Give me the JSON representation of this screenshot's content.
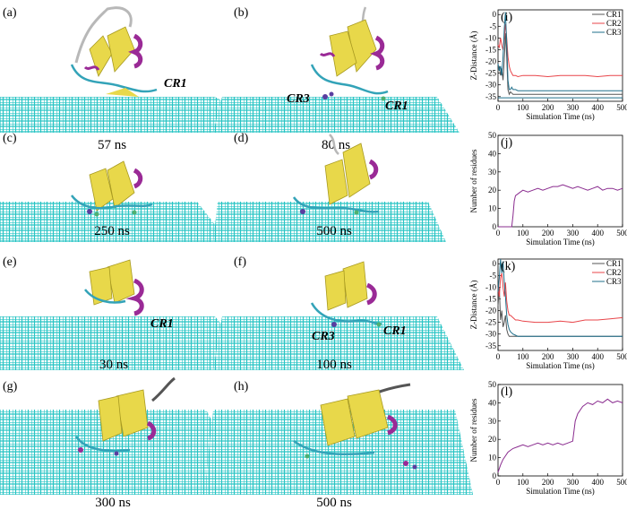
{
  "figure": {
    "snapshots": [
      {
        "label": "(a)",
        "time": "57 ns",
        "annotations": [
          "CR1"
        ]
      },
      {
        "label": "(b)",
        "time": "80 ns",
        "annotations": [
          "CR3",
          "CR1"
        ]
      },
      {
        "label": "(c)",
        "time": "250 ns",
        "annotations": []
      },
      {
        "label": "(d)",
        "time": "500 ns",
        "annotations": []
      },
      {
        "label": "(e)",
        "time": "30 ns",
        "annotations": [
          "CR1"
        ]
      },
      {
        "label": "(f)",
        "time": "100 ns",
        "annotations": [
          "CR3",
          "CR1"
        ]
      },
      {
        "label": "(g)",
        "time": "300 ns",
        "annotations": []
      },
      {
        "label": "(h)",
        "time": "500 ns",
        "annotations": []
      }
    ],
    "colors": {
      "surface": "#28c4c4",
      "surface_dot": "#e03030",
      "protein_sheet": "#e8d84a",
      "protein_helix": "#9a2a96",
      "protein_coil": "#33a3b8",
      "protein_loop": "#b8b8b8"
    }
  },
  "chart_data": [
    {
      "label": "(i)",
      "type": "line",
      "xlabel": "Simulation Time (ns)",
      "ylabel": "Z-Distance (Å)",
      "xlim": [
        0,
        500
      ],
      "ylim": [
        -37,
        2
      ],
      "xticks": [
        0,
        100,
        200,
        300,
        400,
        500
      ],
      "yticks": [
        0,
        -5,
        -10,
        -15,
        -20,
        -25,
        -30,
        -35
      ],
      "legend_position": "top-right",
      "series": [
        {
          "name": "CR1",
          "color": "#555555",
          "x": [
            0,
            5,
            10,
            15,
            20,
            25,
            30,
            35,
            40,
            45,
            50,
            55,
            60,
            70,
            80,
            100,
            150,
            200,
            250,
            300,
            350,
            400,
            450,
            500
          ],
          "y": [
            -24,
            -22,
            -26,
            -23,
            -28,
            -19,
            -8,
            -18,
            -32,
            -34,
            -33,
            -33.5,
            -34,
            -34,
            -34,
            -34,
            -34,
            -34,
            -34,
            -34,
            -34,
            -34,
            -34,
            -34
          ]
        },
        {
          "name": "CR2",
          "color": "#e8454a",
          "x": [
            0,
            5,
            10,
            15,
            20,
            25,
            30,
            35,
            40,
            45,
            50,
            55,
            60,
            70,
            80,
            100,
            150,
            200,
            250,
            300,
            350,
            400,
            450,
            500
          ],
          "y": [
            -13,
            -14,
            -10,
            -13,
            -15,
            -10,
            -4,
            -10,
            -18,
            -22,
            -24,
            -25,
            -26,
            -26,
            -26.5,
            -26,
            -26,
            -26.5,
            -26,
            -26,
            -26,
            -26.5,
            -26,
            -26
          ]
        },
        {
          "name": "CR3",
          "color": "#1f6f8b",
          "x": [
            0,
            5,
            10,
            15,
            20,
            25,
            30,
            35,
            40,
            45,
            50,
            55,
            60,
            70,
            80,
            100,
            150,
            200,
            250,
            300,
            350,
            400,
            450,
            500
          ],
          "y": [
            -21,
            -24,
            -22,
            -26,
            -18,
            -6,
            1,
            -12,
            -28,
            -32,
            -32,
            -31,
            -32,
            -32,
            -32.5,
            -32.5,
            -32.5,
            -32.5,
            -32.5,
            -32.5,
            -32.5,
            -32.5,
            -32.5,
            -32.5
          ]
        }
      ],
      "hlines": [
        {
          "y": -35.5,
          "color": "#1f6f8b"
        }
      ]
    },
    {
      "label": "(j)",
      "type": "line",
      "xlabel": "Simulation Time (ns)",
      "ylabel": "Number of residues",
      "xlim": [
        0,
        500
      ],
      "ylim": [
        0,
        50
      ],
      "xticks": [
        0,
        100,
        200,
        300,
        400,
        500
      ],
      "yticks": [
        0,
        10,
        20,
        30,
        40,
        50
      ],
      "series": [
        {
          "name": "",
          "color": "#8a2c8f",
          "x": [
            0,
            55,
            60,
            65,
            70,
            80,
            90,
            100,
            120,
            140,
            160,
            180,
            200,
            220,
            240,
            260,
            280,
            300,
            320,
            340,
            360,
            380,
            400,
            420,
            440,
            460,
            480,
            500
          ],
          "y": [
            0,
            0,
            6,
            14,
            17,
            18,
            19,
            20,
            19,
            20,
            21,
            20,
            21,
            22,
            22,
            23,
            22,
            21,
            22,
            21,
            20,
            21,
            22,
            20,
            21,
            21,
            20,
            21
          ]
        }
      ]
    },
    {
      "label": "(k)",
      "type": "line",
      "xlabel": "Simulation Time (ns)",
      "ylabel": "Z-Distance (Å)",
      "xlim": [
        0,
        500
      ],
      "ylim": [
        -37,
        2
      ],
      "xticks": [
        0,
        100,
        200,
        300,
        400,
        500
      ],
      "yticks": [
        0,
        -5,
        -10,
        -15,
        -20,
        -25,
        -30,
        -35
      ],
      "legend_position": "top-right",
      "series": [
        {
          "name": "CR1",
          "color": "#555555",
          "x": [
            0,
            5,
            10,
            15,
            20,
            25,
            30,
            35,
            40,
            45,
            50,
            60,
            70,
            80,
            100,
            150,
            200,
            250,
            300,
            350,
            400,
            450,
            500
          ],
          "y": [
            -18,
            -10,
            -24,
            -20,
            -27,
            -25,
            -22,
            -28,
            -30,
            -31,
            -31,
            -31,
            -31,
            -31,
            -31,
            -31,
            -31,
            -31,
            -31,
            -31,
            -31,
            -31,
            -31
          ]
        },
        {
          "name": "CR2",
          "color": "#e8454a",
          "x": [
            0,
            5,
            10,
            15,
            20,
            25,
            30,
            35,
            40,
            45,
            50,
            60,
            70,
            80,
            100,
            150,
            200,
            250,
            300,
            350,
            400,
            450,
            500
          ],
          "y": [
            -10,
            -14,
            -6,
            -4,
            -10,
            -14,
            -8,
            -16,
            -20,
            -22,
            -22,
            -23,
            -24,
            -24,
            -24.5,
            -25,
            -25,
            -24.5,
            -25,
            -24,
            -24,
            -23.5,
            -23
          ]
        },
        {
          "name": "CR3",
          "color": "#1f6f8b",
          "x": [
            0,
            5,
            10,
            15,
            20,
            25,
            30,
            35,
            40,
            45,
            50,
            60,
            70,
            80,
            100,
            150,
            200,
            250,
            300,
            350,
            400,
            450,
            500
          ],
          "y": [
            -12,
            -6,
            2,
            -4,
            1,
            -8,
            -14,
            -22,
            -26,
            -28,
            -29,
            -30,
            -30.5,
            -31,
            -31,
            -31,
            -31,
            -31,
            -31,
            -31,
            -31,
            -31,
            -31
          ]
        }
      ]
    },
    {
      "label": "(l)",
      "type": "line",
      "xlabel": "Simulation Time (ns)",
      "ylabel": "Number of residues",
      "xlim": [
        0,
        500
      ],
      "ylim": [
        0,
        50
      ],
      "xticks": [
        0,
        100,
        200,
        300,
        400,
        500
      ],
      "yticks": [
        0,
        10,
        20,
        30,
        40,
        50
      ],
      "series": [
        {
          "name": "",
          "color": "#8a2c8f",
          "x": [
            0,
            10,
            20,
            30,
            40,
            50,
            60,
            80,
            100,
            120,
            140,
            160,
            180,
            200,
            220,
            240,
            260,
            280,
            300,
            310,
            320,
            340,
            360,
            380,
            400,
            420,
            440,
            460,
            480,
            500
          ],
          "y": [
            2,
            6,
            9,
            11,
            13,
            14,
            15,
            16,
            17,
            16,
            17,
            18,
            17,
            18,
            17,
            18,
            17,
            18,
            19,
            30,
            34,
            38,
            40,
            39,
            41,
            40,
            42,
            40,
            41,
            40
          ]
        }
      ]
    }
  ]
}
